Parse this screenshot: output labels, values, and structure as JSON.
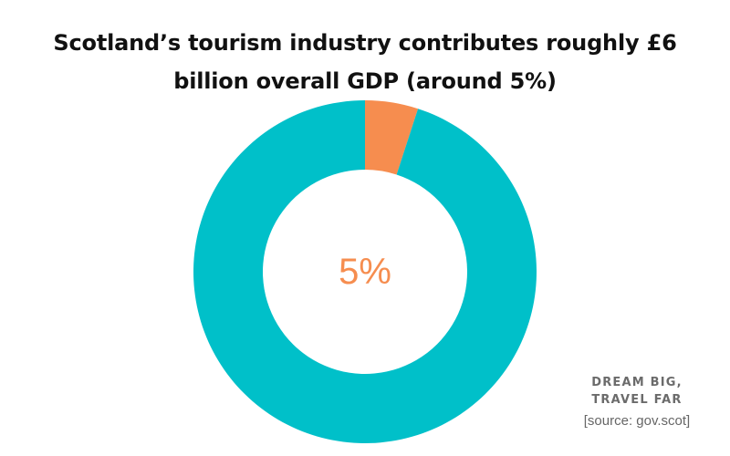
{
  "title_lines": [
    "Scotland’s tourism industry contributes roughly £6",
    "billion overall GDP (around 5%)"
  ],
  "chart_data": {
    "type": "pie",
    "style": "donut",
    "title": "Scotland’s tourism industry contributes roughly £6 billion overall GDP (around 5%)",
    "slices": [
      {
        "value": 5,
        "color": "#f68d4f"
      },
      {
        "value": 95,
        "color": "#00c0c9"
      }
    ],
    "center_label": "5%",
    "center_label_color": "#f68d4f",
    "legend": false
  },
  "branding": {
    "line1": "DREAM BIG,",
    "line2": "TRAVEL FAR"
  },
  "source": "[source: gov.scot]"
}
